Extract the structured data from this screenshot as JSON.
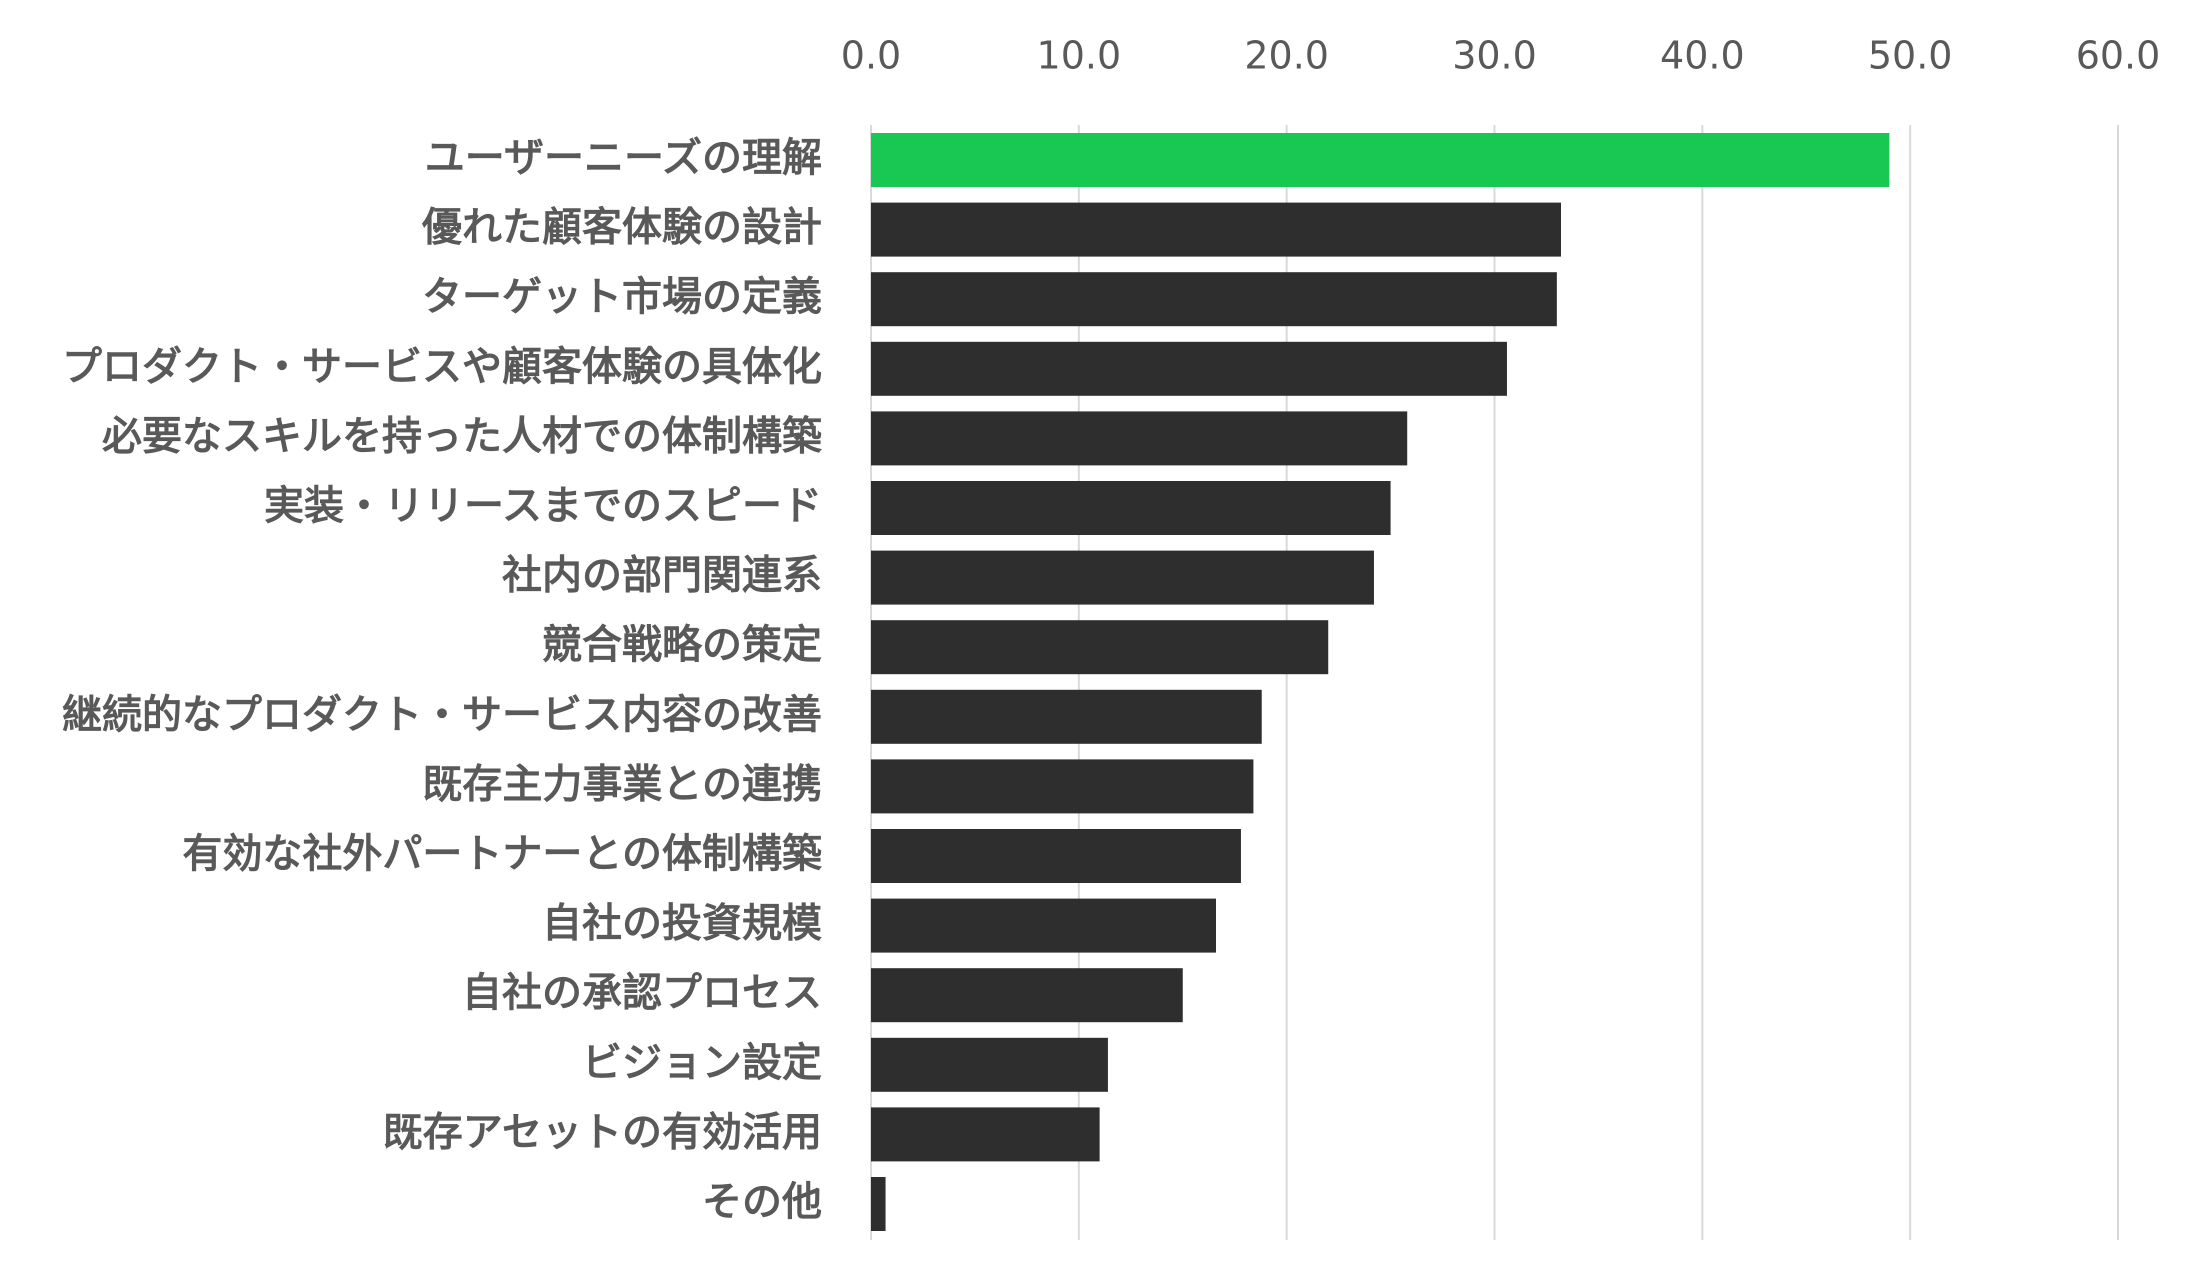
{
  "chart_data": {
    "type": "bar",
    "orientation": "horizontal",
    "title": "",
    "xlabel": "",
    "ylabel": "",
    "xlim": [
      0,
      60
    ],
    "x_ticks": [
      0,
      10,
      20,
      30,
      40,
      50,
      60
    ],
    "x_tick_labels": [
      "0.0",
      "10.0",
      "20.0",
      "30.0",
      "40.0",
      "50.0",
      "60.0"
    ],
    "x_axis_position": "top",
    "grid": true,
    "legend": "none",
    "categories": [
      "ユーザーニーズの理解",
      "優れた顧客体験の設計",
      "ターゲット市場の定義",
      "プロダクト・サービスや顧客体験の具体化",
      "必要なスキルを持った人材での体制構築",
      "実装・リリースまでのスピード",
      "社内の部門関連系",
      "競合戦略の策定",
      "継続的なプロダクト・サービス内容の改善",
      "既存主力事業との連携",
      "有効な社外パートナーとの体制構築",
      "自社の投資規模",
      "自社の承認プロセス",
      "ビジョン設定",
      "既存アセットの有効活用",
      "その他"
    ],
    "values": [
      49.0,
      33.2,
      33.0,
      30.6,
      25.8,
      25.0,
      24.2,
      22.0,
      18.8,
      18.4,
      17.8,
      16.6,
      15.0,
      11.4,
      11.0,
      0.7
    ],
    "highlight_index": 0,
    "colors": {
      "highlight": "#19c853",
      "bar": "#2e2e2e",
      "grid": "#d9d9d9",
      "text": "#595959"
    }
  }
}
